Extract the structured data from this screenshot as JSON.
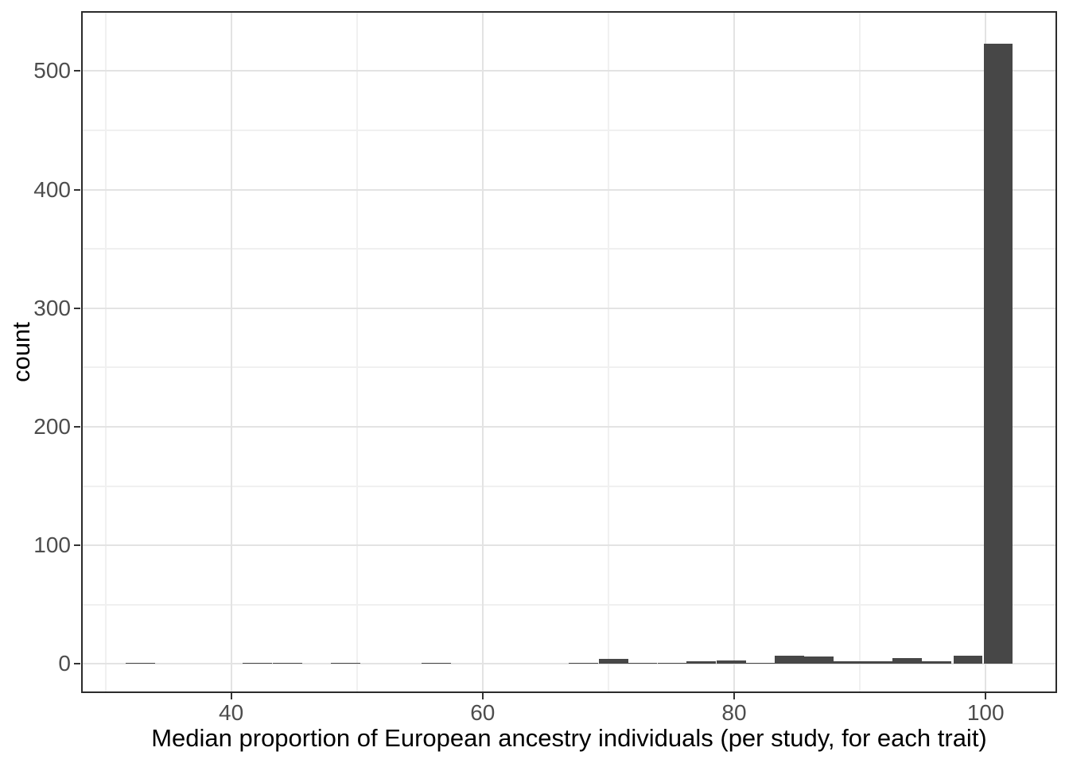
{
  "chart_data": {
    "type": "bar",
    "subtype": "histogram",
    "title": "",
    "xlabel": "Median proportion of European ancestry individuals (per study, for each trait)",
    "ylabel": "count",
    "xlim": [
      28.07,
      105.68
    ],
    "ylim": [
      -24.5,
      550.6
    ],
    "x_major_ticks": [
      40,
      60,
      80,
      100
    ],
    "y_major_ticks": [
      0,
      100,
      200,
      300,
      400,
      500
    ],
    "x_minor_gridlines": [
      30,
      50,
      70,
      90
    ],
    "y_minor_gridlines": [
      50,
      150,
      250,
      350,
      450
    ],
    "binwidth": 2.33,
    "bins": [
      {
        "center": 32.8,
        "count": 1
      },
      {
        "center": 42.1,
        "count": 1
      },
      {
        "center": 44.5,
        "count": 1
      },
      {
        "center": 49.1,
        "count": 1
      },
      {
        "center": 56.3,
        "count": 1
      },
      {
        "center": 68.0,
        "count": 1
      },
      {
        "center": 70.4,
        "count": 4
      },
      {
        "center": 72.7,
        "count": 1
      },
      {
        "center": 75.1,
        "count": 1
      },
      {
        "center": 77.4,
        "count": 2
      },
      {
        "center": 79.8,
        "count": 3
      },
      {
        "center": 82.1,
        "count": 1
      },
      {
        "center": 84.4,
        "count": 7
      },
      {
        "center": 86.75,
        "count": 6
      },
      {
        "center": 89.1,
        "count": 2
      },
      {
        "center": 91.4,
        "count": 2
      },
      {
        "center": 93.75,
        "count": 5
      },
      {
        "center": 96.1,
        "count": 2
      },
      {
        "center": 98.6,
        "count": 7
      },
      {
        "center": 101.0,
        "count": 523
      }
    ],
    "legend_position": "none",
    "grid": "major+minor"
  },
  "colors": {
    "background": "#FFFFFF",
    "bar_fill": "#474747",
    "panel_border": "#2B2B2B",
    "grid_major": "#E3E3E3",
    "grid_minor": "#F0F0F0",
    "tick_mark": "#333333",
    "tick_label": "#4D4D4D",
    "axis_title": "#000000"
  }
}
